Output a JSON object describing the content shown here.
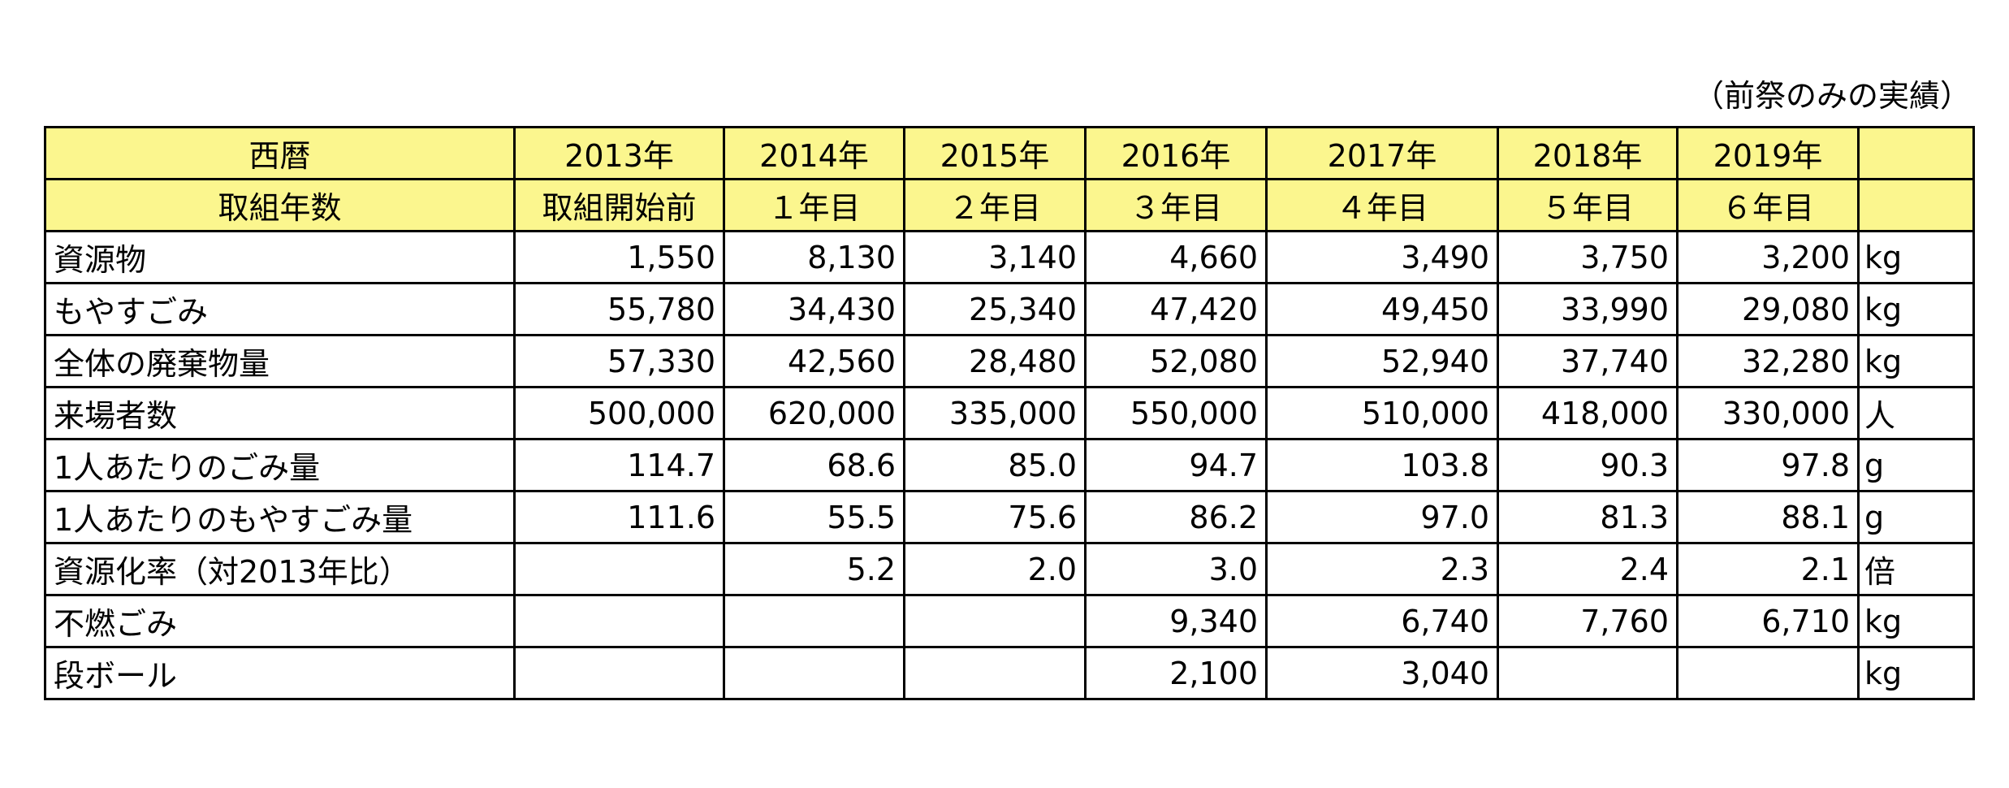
{
  "note": "（前祭のみの実績）",
  "header_rows": [
    {
      "label": "西暦",
      "cells": [
        "2013年",
        "2014年",
        "2015年",
        "2016年",
        "2017年",
        "2018年",
        "2019年"
      ],
      "unit": ""
    },
    {
      "label": "取組年数",
      "cells": [
        "取組開始前",
        "１年目",
        "２年目",
        "３年目",
        "４年目",
        "５年目",
        "６年目"
      ],
      "unit": ""
    }
  ],
  "data_rows": [
    {
      "label": "資源物",
      "cells": [
        "1,550",
        "8,130",
        "3,140",
        "4,660",
        "3,490",
        "3,750",
        "3,200"
      ],
      "unit": "kg"
    },
    {
      "label": "もやすごみ",
      "cells": [
        "55,780",
        "34,430",
        "25,340",
        "47,420",
        "49,450",
        "33,990",
        "29,080"
      ],
      "unit": "kg"
    },
    {
      "label": "全体の廃棄物量",
      "cells": [
        "57,330",
        "42,560",
        "28,480",
        "52,080",
        "52,940",
        "37,740",
        "32,280"
      ],
      "unit": "kg"
    },
    {
      "label": "来場者数",
      "cells": [
        "500,000",
        "620,000",
        "335,000",
        "550,000",
        "510,000",
        "418,000",
        "330,000"
      ],
      "unit": "人"
    },
    {
      "label": "1人あたりのごみ量",
      "cells": [
        "114.7",
        "68.6",
        "85.0",
        "94.7",
        "103.8",
        "90.3",
        "97.8"
      ],
      "unit": "g"
    },
    {
      "label": "1人あたりのもやすごみ量",
      "cells": [
        "111.6",
        "55.5",
        "75.6",
        "86.2",
        "97.0",
        "81.3",
        "88.1"
      ],
      "unit": "g"
    },
    {
      "label": "資源化率（対2013年比）",
      "cells": [
        "",
        "5.2",
        "2.0",
        "3.0",
        "2.3",
        "2.4",
        "2.1"
      ],
      "unit": "倍"
    },
    {
      "label": "不燃ごみ",
      "cells": [
        "",
        "",
        "",
        "9,340",
        "6,740",
        "7,760",
        "6,710"
      ],
      "unit": "kg"
    },
    {
      "label": "段ボール",
      "cells": [
        "",
        "",
        "",
        "2,100",
        "3,040",
        "",
        ""
      ],
      "unit": "kg"
    }
  ],
  "colors": {
    "header_background": "#fbf68e",
    "border": "#000000"
  }
}
